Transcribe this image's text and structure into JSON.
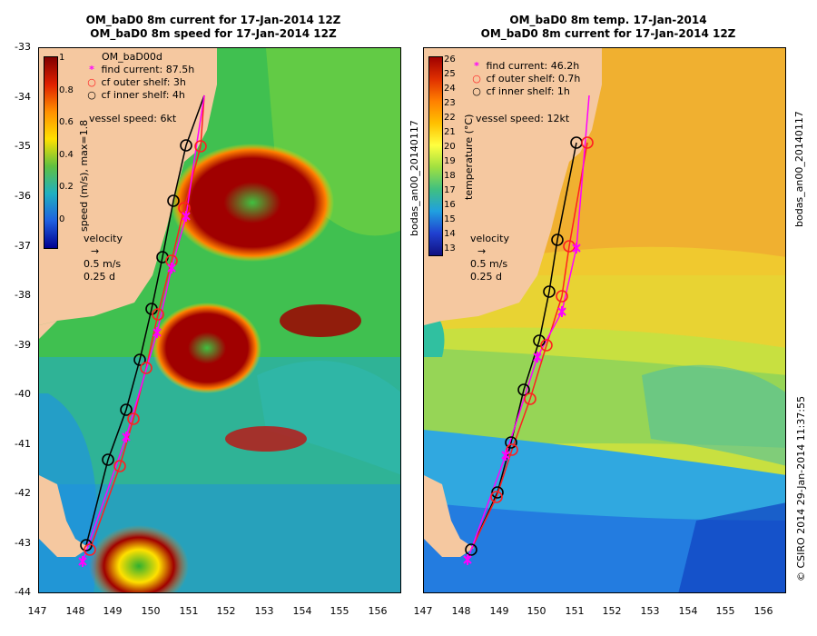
{
  "left": {
    "title_line1": "OM_baD0 8m current for 17-Jan-2014 12Z",
    "title_line2": "OM_baD0 8m speed for 17-Jan-2014 12Z",
    "legend_model": "OM_baD00d",
    "legend_items": [
      "find current: 87.5h",
      "cf outer shelf: 3h",
      "cf inner shelf: 4h"
    ],
    "vessel_speed": "vessel speed: 6kt",
    "colorbar_label": "speed (m/s), max=1.8",
    "colorbar_ticks": [
      "1",
      "0.8",
      "0.6",
      "0.4",
      "0.2",
      "0"
    ],
    "velocity_label": "velocity",
    "velocity_scale1": "0.5 m/s",
    "velocity_scale2": "0.25 d"
  },
  "right": {
    "title_line1": "OM_baD0 8m temp. 17-Jan-2014",
    "title_line2": "OM_baD0 8m current for 17-Jan-2014 12Z",
    "legend_items": [
      "find current: 46.2h",
      "cf outer shelf: 0.7h",
      "cf inner shelf: 1h"
    ],
    "vessel_speed": "vessel speed: 12kt",
    "colorbar_label": "temperature (°C)",
    "colorbar_ticks": [
      "26",
      "25",
      "24",
      "23",
      "22",
      "21",
      "20",
      "19",
      "18",
      "17",
      "16",
      "15",
      "14",
      "13"
    ],
    "velocity_label": "velocity",
    "velocity_scale1": "0.5 m/s",
    "velocity_scale2": "0.25 d"
  },
  "axes": {
    "y_ticks": [
      "-33",
      "-34",
      "-35",
      "-36",
      "-37",
      "-38",
      "-39",
      "-40",
      "-41",
      "-42",
      "-43",
      "-44"
    ],
    "x_ticks": [
      "147",
      "148",
      "149",
      "150",
      "151",
      "152",
      "153",
      "154",
      "155",
      "156"
    ]
  },
  "side_texts": {
    "left_map_id": "bodas_an00_20140117",
    "right_map_id": "bodas_an00_20140117",
    "credit": "© CSIRO 2014   29-Jan-2014 11:37:55"
  },
  "colors": {
    "land": "#f5c8a0",
    "track_find": "#ff00ff",
    "track_outer": "#ff2020",
    "track_inner": "#000000"
  }
}
